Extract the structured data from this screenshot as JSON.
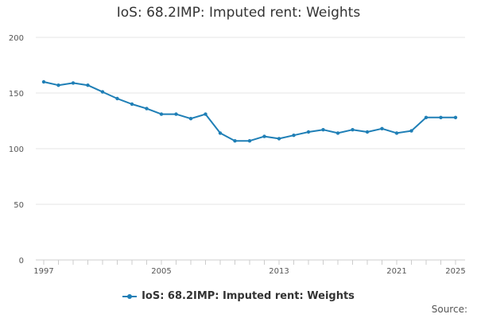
{
  "colors": {
    "series": "#1f7fb6",
    "grid": "#e6e6e6",
    "axis": "#cccccc"
  },
  "chart_data": {
    "type": "line",
    "title": "IoS: 68.2IMP: Imputed rent: Weights",
    "xlabel": "",
    "ylabel": "",
    "x": [
      1997,
      1998,
      1999,
      2000,
      2001,
      2002,
      2003,
      2004,
      2005,
      2006,
      2007,
      2008,
      2009,
      2010,
      2011,
      2012,
      2013,
      2014,
      2015,
      2016,
      2017,
      2018,
      2019,
      2020,
      2021,
      2022,
      2023,
      2024,
      2025
    ],
    "series": [
      {
        "name": "IoS: 68.2IMP: Imputed rent: Weights",
        "values": [
          160,
          157,
          159,
          157,
          151,
          145,
          140,
          136,
          131,
          131,
          127,
          131,
          114,
          107,
          107,
          111,
          109,
          112,
          115,
          117,
          114,
          117,
          115,
          118,
          114,
          116,
          128,
          128,
          128
        ]
      }
    ],
    "ylim": [
      0,
      200
    ],
    "yticks": [
      0,
      50,
      100,
      150,
      200
    ],
    "xticks": [
      1997,
      2005,
      2013,
      2021,
      2025
    ],
    "grid": true,
    "legend": "bottom"
  },
  "source_label": "Source:"
}
